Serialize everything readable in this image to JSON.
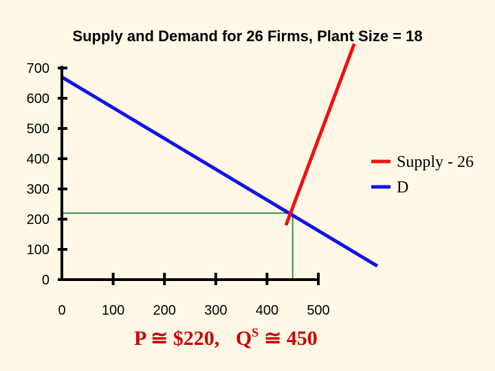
{
  "chart_data": {
    "type": "line",
    "title": "Supply and Demand for 26 Firms, Plant Size = 18",
    "xlabel": "",
    "ylabel": "",
    "xlim": [
      0,
      500
    ],
    "ylim": [
      0,
      700
    ],
    "x_ticks": [
      0,
      100,
      200,
      300,
      400,
      500
    ],
    "x_tick_labels": [
      "0",
      "100",
      "200",
      "300",
      "400",
      "500"
    ],
    "y_ticks": [
      0,
      100,
      200,
      300,
      400,
      500,
      600,
      700
    ],
    "y_tick_labels": [
      "0",
      "100",
      "200",
      "300",
      "400",
      "500",
      "600",
      "700"
    ],
    "grid": false,
    "legend_position": "right",
    "series": [
      {
        "name": "Supply - 26",
        "color": "#EE1111",
        "x": [
          437,
          570
        ],
        "y": [
          180,
          780
        ]
      },
      {
        "name": "D",
        "color": "#1111EE",
        "x": [
          0,
          615
        ],
        "y": [
          670,
          45
        ]
      }
    ],
    "equilibrium": {
      "x": 450,
      "y": 220,
      "color": "#3C8C4E"
    },
    "annotation": {
      "price_part": "P ≅ $220,",
      "q_part": "Q",
      "q_superscript": "S",
      "q_value": "≅ 450"
    }
  }
}
